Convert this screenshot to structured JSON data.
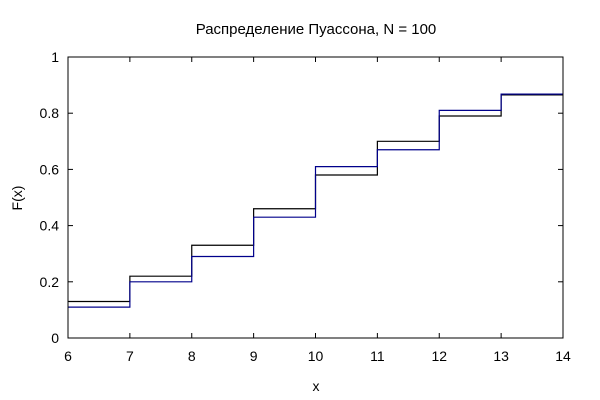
{
  "chart_data": {
    "type": "line",
    "title": "Распределение Пуассона, N = 100",
    "xlabel": "x",
    "ylabel": "F(x)",
    "xlim": [
      6,
      14
    ],
    "ylim": [
      0,
      1
    ],
    "x_ticks": [
      "6",
      "7",
      "8",
      "9",
      "10",
      "11",
      "12",
      "13",
      "14"
    ],
    "y_ticks": [
      "0",
      "0.2",
      "0.4",
      "0.6",
      "0.8",
      "1"
    ],
    "grid": false,
    "step": true,
    "series": [
      {
        "color": "#000000",
        "x": [
          6,
          7,
          8,
          9,
          10,
          11,
          12,
          13
        ],
        "values": [
          0.13,
          0.22,
          0.33,
          0.46,
          0.58,
          0.7,
          0.79,
          0.865
        ]
      },
      {
        "color": "#00008b",
        "x": [
          6,
          7,
          8,
          9,
          10,
          11,
          12,
          13
        ],
        "values": [
          0.11,
          0.2,
          0.29,
          0.43,
          0.61,
          0.67,
          0.81,
          0.868
        ]
      }
    ]
  }
}
